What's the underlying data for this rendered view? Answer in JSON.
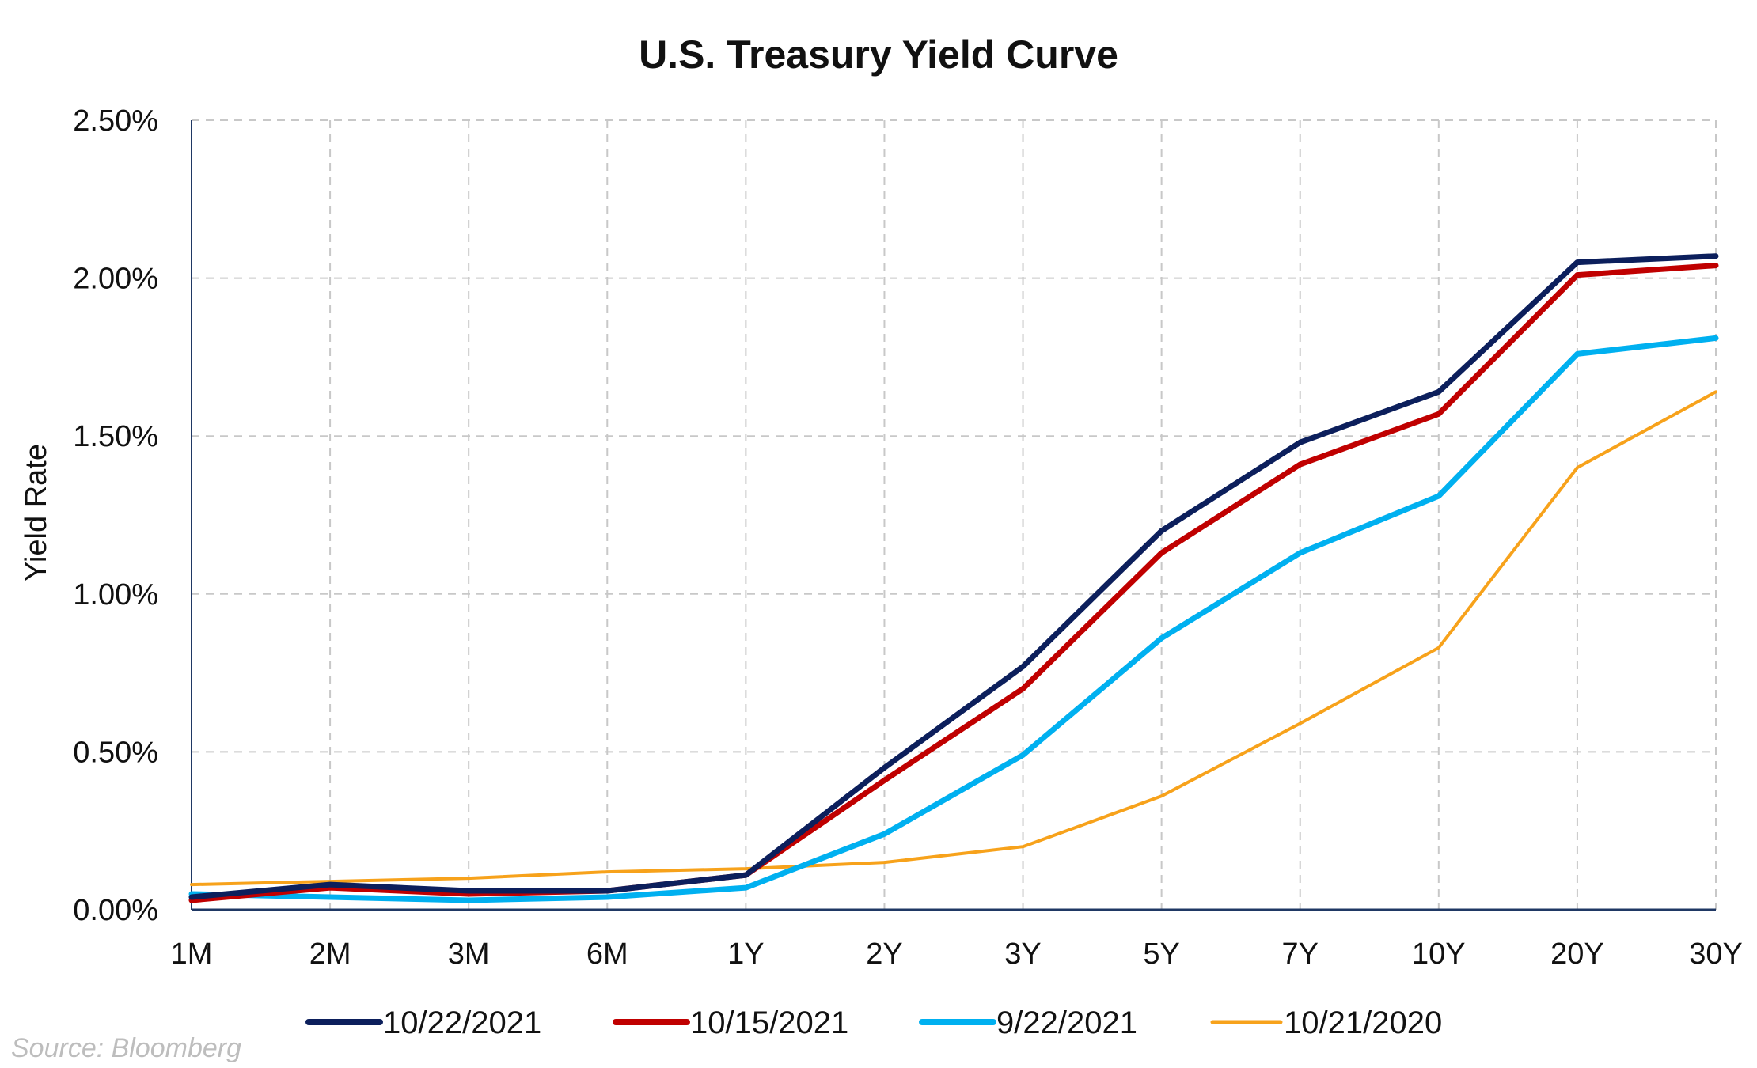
{
  "chart_data": {
    "type": "line",
    "title": "U.S. Treasury Yield Curve",
    "ylabel": "Yield Rate",
    "xlabel": "",
    "categories": [
      "1M",
      "2M",
      "3M",
      "6M",
      "1Y",
      "2Y",
      "3Y",
      "5Y",
      "7Y",
      "10Y",
      "20Y",
      "30Y"
    ],
    "ylim": [
      0,
      2.5
    ],
    "yticks": [
      "0.00%",
      "0.50%",
      "1.00%",
      "1.50%",
      "2.00%",
      "2.50%"
    ],
    "ytick_values": [
      0,
      0.5,
      1.0,
      1.5,
      2.0,
      2.5
    ],
    "grid": true,
    "legend_position": "bottom",
    "source": "Source: Bloomberg",
    "series": [
      {
        "name": "10/22/2021",
        "color": "#0c1f5c",
        "values": [
          0.04,
          0.08,
          0.06,
          0.06,
          0.11,
          0.45,
          0.77,
          1.2,
          1.48,
          1.64,
          2.05,
          2.07
        ]
      },
      {
        "name": "10/15/2021",
        "color": "#c00000",
        "values": [
          0.03,
          0.07,
          0.05,
          0.06,
          0.11,
          0.41,
          0.7,
          1.13,
          1.41,
          1.57,
          2.01,
          2.04
        ]
      },
      {
        "name": "9/22/2021",
        "color": "#00b0f0",
        "values": [
          0.05,
          0.04,
          0.03,
          0.04,
          0.07,
          0.24,
          0.49,
          0.86,
          1.13,
          1.31,
          1.76,
          1.81
        ]
      },
      {
        "name": "10/21/2020",
        "color": "#f7a21b",
        "values": [
          0.08,
          0.09,
          0.1,
          0.12,
          0.13,
          0.15,
          0.2,
          0.36,
          0.59,
          0.83,
          1.4,
          1.64
        ]
      }
    ]
  }
}
